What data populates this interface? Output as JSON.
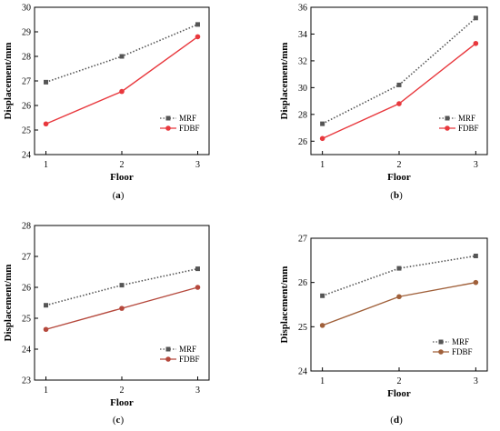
{
  "chart_data": [
    {
      "type": "line",
      "caption": "a",
      "x": [
        1,
        2,
        3
      ],
      "xlabel": "Floor",
      "ylabel": "Displacement/mm",
      "xlim": [
        0.85,
        3.15
      ],
      "ylim": [
        24,
        30
      ],
      "yticks": [
        24,
        25,
        26,
        27,
        28,
        29,
        30
      ],
      "xticks": [
        1,
        2,
        3
      ],
      "legend_position": "bottom-right",
      "series": [
        {
          "name": "MRF",
          "values": [
            26.95,
            28.0,
            29.3
          ],
          "color": "#555555",
          "line_style": "dotted",
          "marker": "square"
        },
        {
          "name": "FDBF",
          "values": [
            25.25,
            26.57,
            28.8
          ],
          "color": "#e8383d",
          "line_style": "solid",
          "marker": "circle"
        }
      ]
    },
    {
      "type": "line",
      "caption": "b",
      "x": [
        1,
        2,
        3
      ],
      "xlabel": "Floor",
      "ylabel": "Displacement/mm",
      "xlim": [
        0.85,
        3.15
      ],
      "ylim": [
        25,
        36
      ],
      "yticks": [
        26,
        28,
        30,
        32,
        34,
        36
      ],
      "xticks": [
        1,
        2,
        3
      ],
      "legend_position": "bottom-right",
      "series": [
        {
          "name": "MRF",
          "values": [
            27.3,
            30.2,
            35.2
          ],
          "color": "#555555",
          "line_style": "dotted",
          "marker": "square"
        },
        {
          "name": "FDBF",
          "values": [
            26.2,
            28.8,
            33.3
          ],
          "color": "#e8383d",
          "line_style": "solid",
          "marker": "circle"
        }
      ]
    },
    {
      "type": "line",
      "caption": "c",
      "x": [
        1,
        2,
        3
      ],
      "xlabel": "Floor",
      "ylabel": "Displacement/mm",
      "xlim": [
        0.85,
        3.15
      ],
      "ylim": [
        23,
        28
      ],
      "yticks": [
        23,
        24,
        25,
        26,
        27,
        28
      ],
      "xticks": [
        1,
        2,
        3
      ],
      "legend_position": "bottom-right",
      "series": [
        {
          "name": "MRF",
          "values": [
            25.42,
            26.07,
            26.6
          ],
          "color": "#555555",
          "line_style": "dotted",
          "marker": "square"
        },
        {
          "name": "FDBF",
          "values": [
            24.64,
            25.32,
            26.0
          ],
          "color": "#b5483c",
          "line_style": "solid",
          "marker": "circle"
        }
      ]
    },
    {
      "type": "line",
      "caption": "d",
      "x": [
        1,
        2,
        3
      ],
      "xlabel": "Floor",
      "ylabel": "Displacement/mm",
      "xlim": [
        0.85,
        3.15
      ],
      "ylim": [
        24,
        27
      ],
      "yticks": [
        24,
        25,
        26,
        27
      ],
      "xticks": [
        1,
        2,
        3
      ],
      "legend_position": "bottom-right",
      "series": [
        {
          "name": "MRF",
          "values": [
            25.7,
            26.32,
            26.6
          ],
          "color": "#555555",
          "line_style": "dotted",
          "marker": "square"
        },
        {
          "name": "FDBF",
          "values": [
            25.03,
            25.68,
            26.0
          ],
          "color": "#a0603a",
          "line_style": "solid",
          "marker": "circle"
        }
      ]
    }
  ]
}
